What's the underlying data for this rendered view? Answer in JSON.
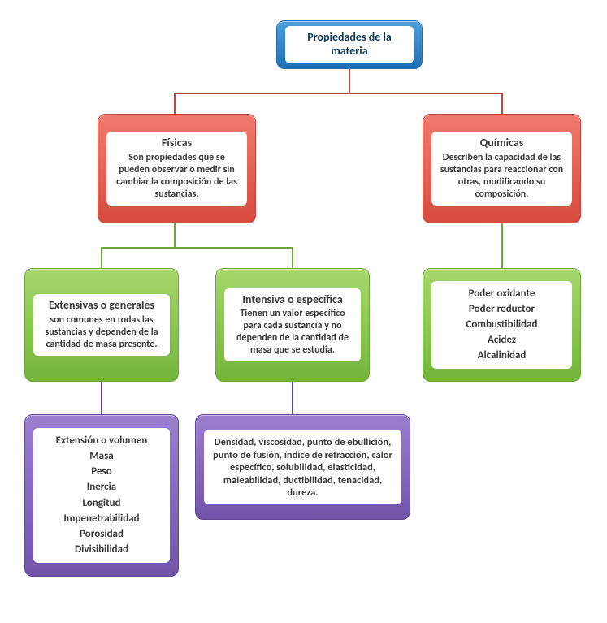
{
  "type": "tree",
  "background_color": "#ffffff",
  "connector_colors": {
    "root": "#c6443a",
    "fisicas": "#6ca838",
    "quimicas": "#6ca838",
    "extensivas": "#5f4894",
    "intensiva": "#5f4894"
  },
  "nodes": {
    "root": {
      "title": "Propiedades de la materia",
      "fill": "linear-gradient(#4aa0e0,#1f6eb5)",
      "border": "#1f6eb5"
    },
    "fisicas": {
      "title": "Físicas",
      "desc": "Son propiedades que se pueden observar o medir sin cambiar la composición de las sustancias.",
      "fill": "linear-gradient(#f07a6e,#d84b3e)",
      "border": "#c6443a"
    },
    "quimicas": {
      "title": "Químicas",
      "desc": "Describen la capacidad de las sustancias para reaccionar con otras, modificando su composición.",
      "fill": "linear-gradient(#f07a6e,#d84b3e)",
      "border": "#c6443a"
    },
    "extensivas": {
      "title": "Extensivas o generales",
      "desc": "son comunes en todas las sustancias y dependen de la cantidad de masa presente.",
      "fill": "linear-gradient(#a6d86c,#74b53a)",
      "border": "#6ca838"
    },
    "intensiva": {
      "title": "Intensiva o específica",
      "desc": "Tienen un valor específico para cada sustancia y no dependen de la cantidad de masa que se estudia.",
      "fill": "linear-gradient(#a6d86c,#74b53a)",
      "border": "#6ca838"
    },
    "quimicas_list": {
      "items": [
        "Poder oxidante",
        "Poder reductor",
        "Combustibilidad",
        "Acidez",
        "Alcalinidad"
      ],
      "fill": "linear-gradient(#a6d86c,#74b53a)",
      "border": "#6ca838"
    },
    "extensivas_list": {
      "items": [
        "Extensión o volumen",
        "Masa",
        "Peso",
        "Inercia",
        "Longitud",
        "Impenetrabilidad",
        "Porosidad",
        "Divisibilidad"
      ],
      "fill": "linear-gradient(#9b7fcf,#6f54a8)",
      "border": "#5f4894"
    },
    "intensiva_list": {
      "desc": "Densidad, viscosidad, punto de ebullición, punto de fusión, índice de refracción, calor específico, solubilidad, elasticidad, maleabilidad, ductibilidad, tenacidad, dureza.",
      "fill": "linear-gradient(#9b7fcf,#6f54a8)",
      "border": "#5f4894"
    }
  },
  "fonts": {
    "title_pt": 14,
    "desc_pt": 12,
    "list_pt": 13,
    "weight": "bold",
    "family": "Calibri"
  }
}
